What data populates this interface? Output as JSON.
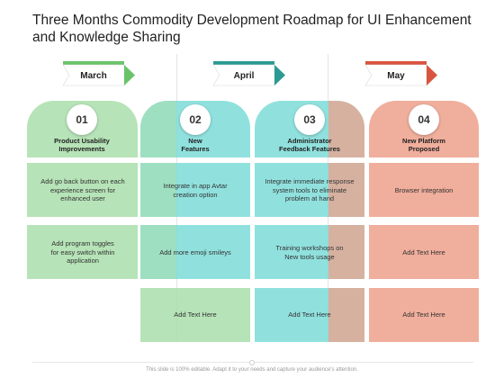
{
  "title": "Three Months Commodity Development Roadmap for UI Enhancement and Knowledge Sharing",
  "months": [
    {
      "label": "March",
      "color": "#6ac36a"
    },
    {
      "label": "April",
      "color": "#2b9a93"
    },
    {
      "label": "May",
      "color": "#d9543f"
    }
  ],
  "columns": [
    {
      "number": "01",
      "label": "Product Usability Improvements",
      "color": "#a9deaa"
    },
    {
      "number": "02",
      "label": "New Features",
      "color": "#7ddcd8"
    },
    {
      "number": "03",
      "label": "Administrator Feedback Features",
      "color": "#7ddcd8"
    },
    {
      "number": "04",
      "label": "New Platform Proposed",
      "color": "#eda08b"
    }
  ],
  "rows": [
    [
      "Add go back button on each experience screen for enhanced user",
      "Integrate in app Avtar creation option",
      "Integrate immediate response system tools to eliminate problem at hand",
      "Browser integration"
    ],
    [
      "Add program toggles for  easy switch within application",
      "Add more emoji smileys",
      "Training workshops on New  tools usage",
      "Add Text Here"
    ],
    [
      "",
      "Add Text Here",
      "Add Text Here",
      "Add Text Here"
    ]
  ],
  "footer": "This slide is 100% editable. Adapt it to your needs and capture your audience's attention."
}
